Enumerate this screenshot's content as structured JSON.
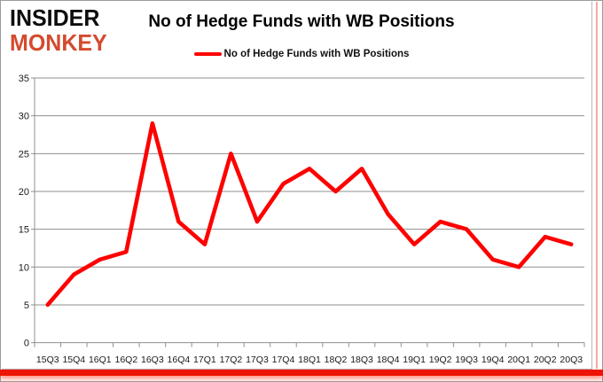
{
  "logo": {
    "line1": "INSIDER",
    "line2": "MONKEY"
  },
  "title": "No of Hedge Funds with WB Positions",
  "legend": {
    "label": "No of Hedge Funds with WB Positions",
    "swatch_color": "#fe0000"
  },
  "chart_data": {
    "type": "line",
    "title": "No of Hedge Funds with WB Positions",
    "series_name": "No of Hedge Funds with WB Positions",
    "categories": [
      "15Q3",
      "15Q4",
      "16Q1",
      "16Q2",
      "16Q3",
      "16Q4",
      "17Q1",
      "17Q2",
      "17Q3",
      "17Q4",
      "18Q1",
      "18Q2",
      "18Q3",
      "18Q4",
      "19Q1",
      "19Q2",
      "19Q3",
      "19Q4",
      "20Q1",
      "20Q2",
      "20Q3"
    ],
    "values": [
      5,
      9,
      11,
      12,
      29,
      16,
      13,
      25,
      16,
      21,
      23,
      20,
      23,
      17,
      13,
      16,
      15,
      11,
      10,
      14,
      13
    ],
    "ylim": [
      0,
      35
    ],
    "yticks": [
      0,
      5,
      10,
      15,
      20,
      25,
      30,
      35
    ],
    "grid": true,
    "legend_position": "top",
    "line_color": "#fe0000",
    "grid_color": "#8f8f8f",
    "axis_label_color": "#1a1a1a"
  },
  "frame": {
    "accent_bar_color": "#ee1405",
    "side_line_color": "#f5a9a4",
    "border_color": "#9b9b9b"
  }
}
